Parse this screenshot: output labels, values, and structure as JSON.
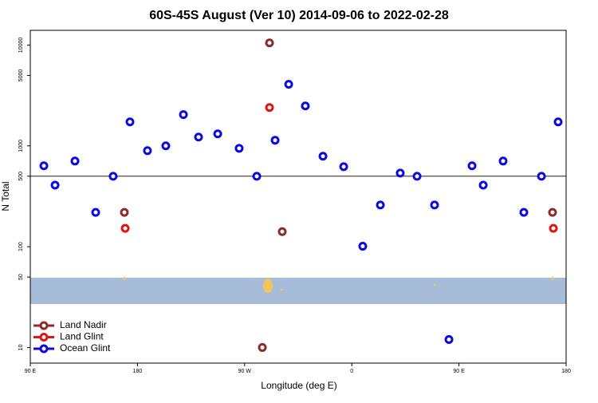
{
  "chart_data": {
    "type": "scatter",
    "title": "60S-45S August (Ver 10)   2014-09-06 to 2022-02-28",
    "x_label": "Longitude (deg E)",
    "y_label": "N Total",
    "xlim": [
      90,
      540
    ],
    "xticks": [
      {
        "value": 90,
        "label": "90 E"
      },
      {
        "value": 180,
        "label": "180"
      },
      {
        "value": 270,
        "label": "90 W"
      },
      {
        "value": 360,
        "label": "0"
      },
      {
        "value": 450,
        "label": "90 E"
      },
      {
        "value": 540,
        "label": "180"
      }
    ],
    "ylim": [
      7,
      14000
    ],
    "yticks": [
      10,
      50,
      100,
      500,
      1000,
      5000,
      10000
    ],
    "log_y": true,
    "hline": 500,
    "legend": "bottom-left",
    "series": [
      {
        "name": "Land Nadir",
        "color": "#8b2b2b",
        "x": [
          169,
          290.9,
          301.6,
          284.9,
          528.6
        ],
        "values": [
          219,
          10500,
          141,
          10,
          219
        ]
      },
      {
        "name": "Land Glint",
        "color": "#e0140f",
        "x": [
          169.7,
          290.9,
          529.3
        ],
        "values": [
          152,
          2400,
          152
        ]
      },
      {
        "name": "Ocean Glint",
        "color": "#0a0ae0",
        "x": [
          101.4,
          110.8,
          127.5,
          144.9,
          159.6,
          173.7,
          188.4,
          203.8,
          218.6,
          231.3,
          247.4,
          265.4,
          280.2,
          295.6,
          307,
          321,
          335.8,
          353.2,
          369.2,
          384,
          400.7,
          414.8,
          429.5,
          441.6,
          461,
          470.4,
          487.1,
          504.5,
          519.3,
          533.3
        ],
        "values": [
          634,
          408,
          707,
          219,
          499,
          1730,
          896,
          1000,
          2040,
          1222,
          1315,
          946,
          499,
          1137,
          4080,
          2490,
          789,
          622,
          101,
          259,
          537,
          499,
          259,
          12,
          634,
          408,
          707,
          219,
          499,
          1730
        ]
      }
    ]
  }
}
